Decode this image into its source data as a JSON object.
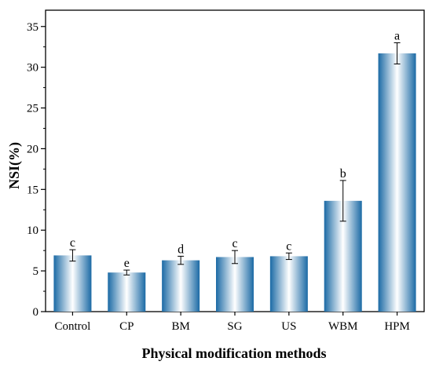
{
  "chart_data": {
    "type": "bar",
    "categories": [
      "Control",
      "CP",
      "BM",
      "SG",
      "US",
      "WBM",
      "HPM"
    ],
    "series": [
      {
        "values": [
          6.9,
          4.8,
          6.3,
          6.7,
          6.8,
          13.6,
          31.7
        ],
        "errors": [
          0.7,
          0.3,
          0.5,
          0.8,
          0.4,
          2.5,
          1.3
        ],
        "significance": [
          "c",
          "e",
          "d",
          "c",
          "c",
          "b",
          "a"
        ]
      }
    ],
    "xlabel": "Physical modification methods",
    "ylabel": "NSI(%)",
    "ylim": [
      0,
      37
    ],
    "yticks": [
      0,
      5,
      10,
      15,
      20,
      25,
      30,
      35
    ],
    "grid": false,
    "legend": "none",
    "bar_color": "#1b6aa5",
    "bar_highlight": "#ffffff"
  }
}
